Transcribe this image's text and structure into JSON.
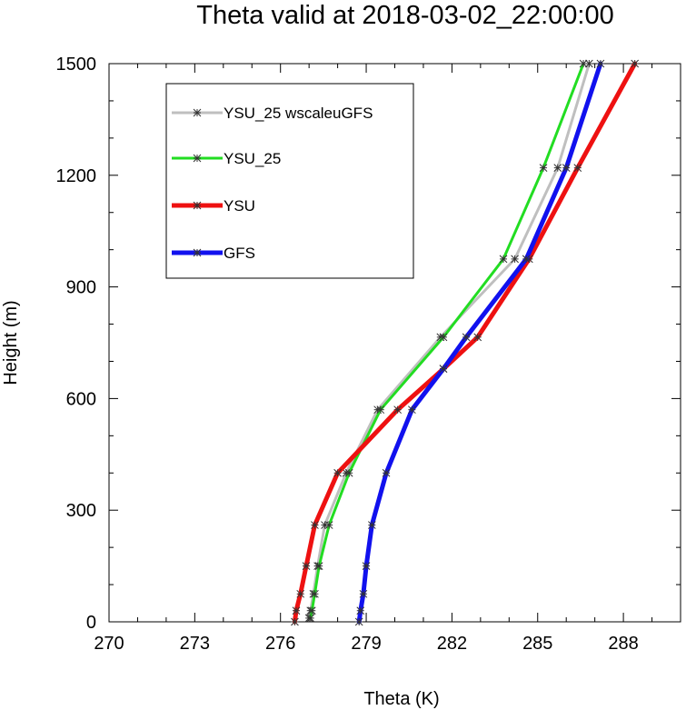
{
  "chart_data": {
    "type": "line",
    "title": "Theta valid at 2018-03-02_22:00:00",
    "xlabel": "Theta (K)",
    "ylabel": "Height (m)",
    "xlim": [
      270,
      290
    ],
    "ylim": [
      0,
      1500
    ],
    "xticks": [
      270,
      273,
      276,
      279,
      282,
      285,
      288
    ],
    "xtick_labels": [
      "270",
      "273",
      "276",
      "279",
      "282",
      "285",
      "288"
    ],
    "yticks": [
      0,
      300,
      600,
      900,
      1200,
      1500
    ],
    "ytick_labels": [
      "0",
      "300",
      "600",
      "900",
      "1200",
      "1500"
    ],
    "grid": false,
    "legend_position": "top-left",
    "series": [
      {
        "name": "YSU_25 wscaleuGFS",
        "color": "#bfbfbf",
        "line_width": 3,
        "points": [
          {
            "x": 277.0,
            "y": 10
          },
          {
            "x": 277.05,
            "y": 30
          },
          {
            "x": 277.15,
            "y": 75
          },
          {
            "x": 277.3,
            "y": 150
          },
          {
            "x": 277.55,
            "y": 260
          },
          {
            "x": 278.3,
            "y": 400
          },
          {
            "x": 279.4,
            "y": 570
          },
          {
            "x": 281.6,
            "y": 765
          },
          {
            "x": 284.2,
            "y": 975
          },
          {
            "x": 285.7,
            "y": 1220
          },
          {
            "x": 286.8,
            "y": 1500
          }
        ]
      },
      {
        "name": "YSU_25",
        "color": "#22dd22",
        "line_width": 3,
        "points": [
          {
            "x": 277.05,
            "y": 10
          },
          {
            "x": 277.1,
            "y": 30
          },
          {
            "x": 277.2,
            "y": 75
          },
          {
            "x": 277.35,
            "y": 150
          },
          {
            "x": 277.7,
            "y": 260
          },
          {
            "x": 278.4,
            "y": 400
          },
          {
            "x": 279.5,
            "y": 570
          },
          {
            "x": 281.7,
            "y": 765
          },
          {
            "x": 283.8,
            "y": 975
          },
          {
            "x": 285.2,
            "y": 1220
          },
          {
            "x": 286.6,
            "y": 1500
          }
        ]
      },
      {
        "name": "YSU",
        "color": "#ee1111",
        "line_width": 5,
        "points": [
          {
            "x": 276.5,
            "y": 0
          },
          {
            "x": 276.55,
            "y": 30
          },
          {
            "x": 276.7,
            "y": 75
          },
          {
            "x": 276.9,
            "y": 150
          },
          {
            "x": 277.2,
            "y": 260
          },
          {
            "x": 278.0,
            "y": 400
          },
          {
            "x": 280.1,
            "y": 570
          },
          {
            "x": 281.7,
            "y": 680
          },
          {
            "x": 282.9,
            "y": 765
          },
          {
            "x": 284.7,
            "y": 975
          },
          {
            "x": 286.4,
            "y": 1220
          },
          {
            "x": 288.4,
            "y": 1500
          }
        ]
      },
      {
        "name": "GFS",
        "color": "#1111ee",
        "line_width": 5,
        "points": [
          {
            "x": 278.75,
            "y": 0
          },
          {
            "x": 278.8,
            "y": 30
          },
          {
            "x": 278.9,
            "y": 75
          },
          {
            "x": 279.0,
            "y": 150
          },
          {
            "x": 279.2,
            "y": 260
          },
          {
            "x": 279.7,
            "y": 400
          },
          {
            "x": 280.6,
            "y": 570
          },
          {
            "x": 281.7,
            "y": 680
          },
          {
            "x": 282.5,
            "y": 765
          },
          {
            "x": 284.6,
            "y": 975
          },
          {
            "x": 286.0,
            "y": 1220
          },
          {
            "x": 287.2,
            "y": 1500
          }
        ]
      }
    ]
  }
}
